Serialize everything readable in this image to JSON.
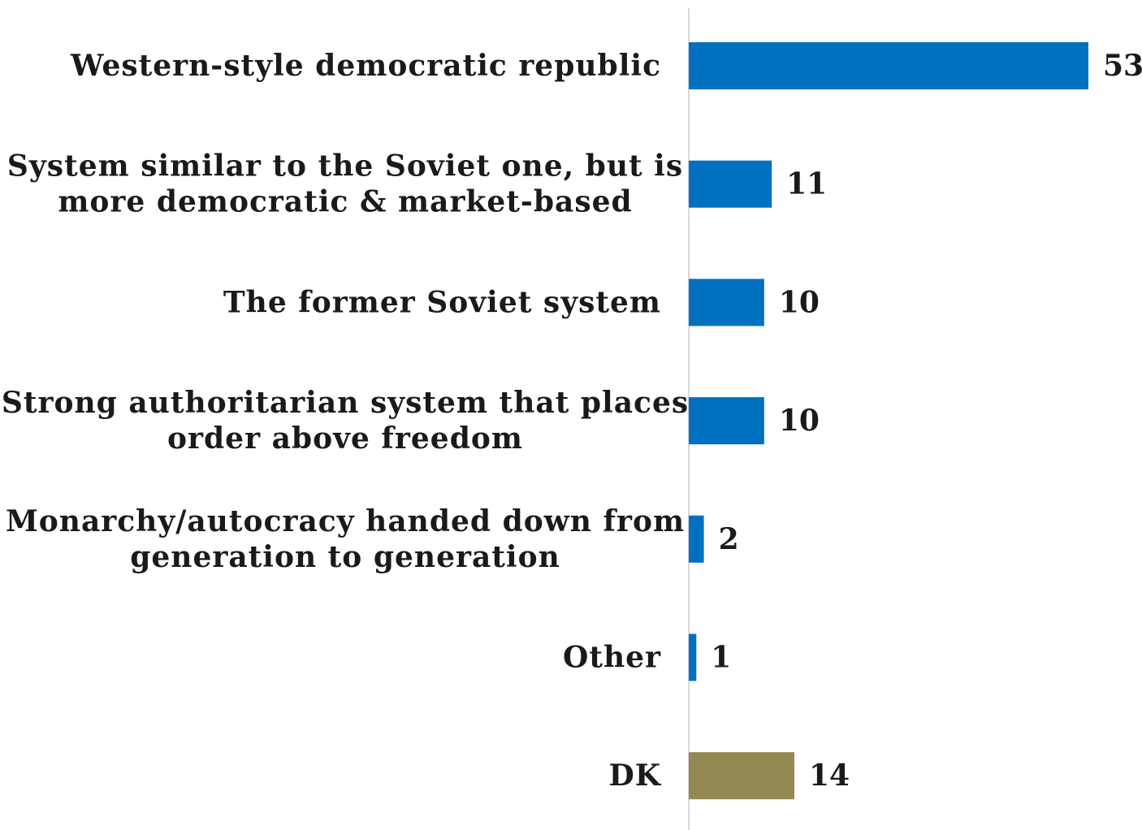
{
  "chart_data": {
    "type": "bar",
    "orientation": "horizontal",
    "categories": [
      [
        "Western-style democratic republic"
      ],
      [
        "System similar to the Soviet one, but is",
        "more democratic & market-based"
      ],
      [
        "The former Soviet system"
      ],
      [
        "Strong authoritarian system that places",
        "order above freedom"
      ],
      [
        "Monarchy/autocracy handed down from",
        "generation to generation"
      ],
      [
        "Other"
      ],
      [
        "DK"
      ]
    ],
    "values": [
      53,
      11,
      10,
      10,
      2,
      1,
      14
    ],
    "value_labels": [
      "53",
      "11",
      "10",
      "10",
      "2",
      "1",
      "14"
    ],
    "bar_colors": [
      "#0070c0",
      "#0070c0",
      "#0070c0",
      "#0070c0",
      "#0070c0",
      "#0070c0",
      "#938953"
    ],
    "xlim": [
      0,
      53
    ],
    "grid": false,
    "axis_line_color": "#d9d9d9"
  }
}
